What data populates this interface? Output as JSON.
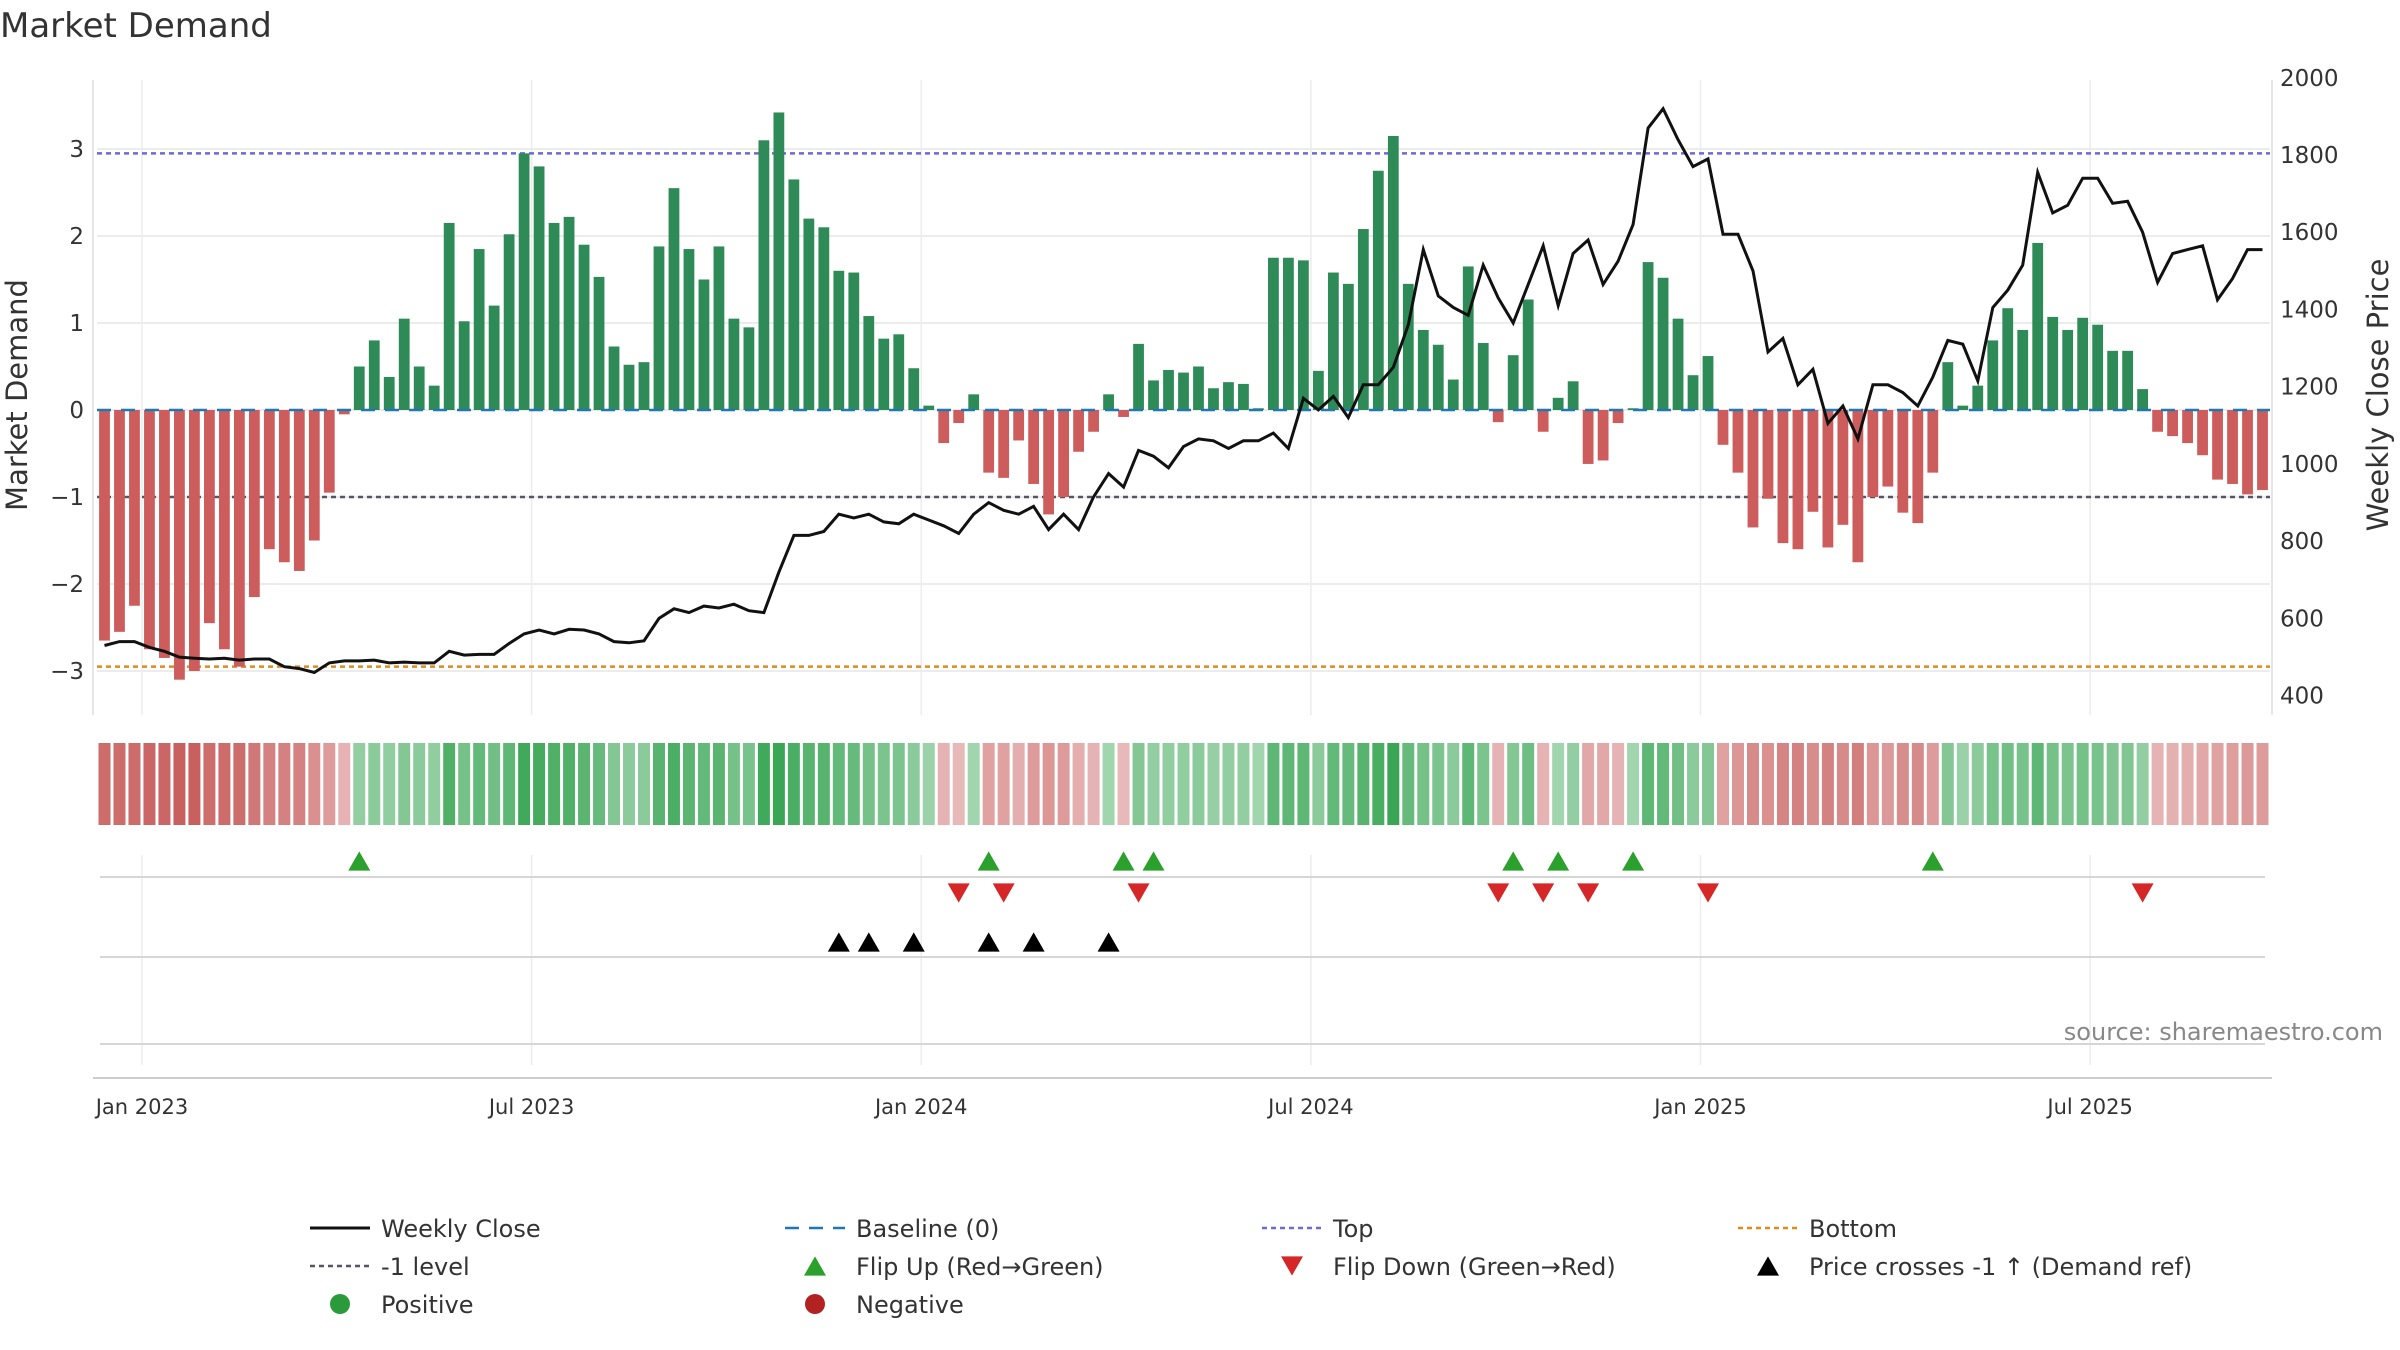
{
  "chart_data": {
    "type": "bar",
    "title": "Market Demand",
    "ylabel": "Market Demand",
    "y2label": "Weekly Close Price",
    "ylim": [
      -3.6,
      3.6
    ],
    "y2lim": [
      385,
      2000
    ],
    "yticks": [
      "3",
      "2",
      "1",
      "0",
      "−1",
      "−2",
      "−3"
    ],
    "y2ticks": [
      "2000",
      "1800",
      "1600",
      "1400",
      "1200",
      "1000",
      "800",
      "600",
      "400"
    ],
    "xticks": [
      "Jan 2023",
      "Jul 2023",
      "Jan 2024",
      "Jul 2024",
      "Jan 2025",
      "Jul 2025"
    ],
    "xtick_weeks": [
      3,
      29,
      55,
      81,
      107,
      133
    ],
    "reference_levels": {
      "top": 2.95,
      "bottom": -2.95,
      "minus_one": -1,
      "baseline": 0
    },
    "series": [
      {
        "name": "Market Demand",
        "values": [
          -2.65,
          -2.55,
          -2.25,
          -2.75,
          -2.85,
          -3.1,
          -3.0,
          -2.45,
          -2.75,
          -2.95,
          -2.15,
          -1.6,
          -1.75,
          -1.85,
          -1.5,
          -0.95,
          -0.05,
          0.5,
          0.8,
          0.38,
          1.05,
          0.5,
          0.28,
          2.15,
          1.02,
          1.85,
          1.2,
          2.02,
          2.95,
          2.8,
          2.15,
          2.22,
          1.9,
          1.53,
          0.73,
          0.52,
          0.55,
          1.88,
          2.55,
          1.85,
          1.5,
          1.88,
          1.05,
          0.95,
          3.1,
          3.42,
          2.65,
          2.2,
          2.1,
          1.6,
          1.58,
          1.08,
          0.82,
          0.87,
          0.48,
          0.05,
          -0.38,
          -0.15,
          0.18,
          -0.72,
          -0.78,
          -0.35,
          -0.85,
          -1.2,
          -1.0,
          -0.48,
          -0.25,
          0.18,
          -0.08,
          0.76,
          0.34,
          0.46,
          0.43,
          0.5,
          0.25,
          0.32,
          0.3,
          0.02,
          1.75,
          1.75,
          1.72,
          0.45,
          1.58,
          1.45,
          2.08,
          2.75,
          3.15,
          1.45,
          0.92,
          0.75,
          0.35,
          1.65,
          0.77,
          -0.14,
          0.63,
          1.27,
          -0.25,
          0.14,
          0.33,
          -0.62,
          -0.58,
          -0.15,
          0.02,
          1.7,
          1.52,
          1.05,
          0.4,
          0.62,
          -0.4,
          -0.72,
          -1.35,
          -1.02,
          -1.53,
          -1.6,
          -1.17,
          -1.58,
          -1.32,
          -1.75,
          -1.0,
          -0.88,
          -1.18,
          -1.3,
          -0.72,
          0.55,
          0.05,
          0.28,
          0.8,
          1.17,
          0.92,
          1.92,
          1.07,
          0.92,
          1.06,
          0.98,
          0.68,
          0.68,
          0.24,
          -0.25,
          -0.3,
          -0.38,
          -0.52,
          -0.8,
          -0.85,
          -0.97,
          -0.92
        ]
      },
      {
        "name": "Weekly Close",
        "values": [
          530,
          540,
          540,
          525,
          515,
          500,
          497,
          495,
          497,
          492,
          495,
          495,
          475,
          470,
          460,
          485,
          490,
          490,
          492,
          485,
          487,
          485,
          485,
          515,
          505,
          507,
          507,
          535,
          560,
          570,
          560,
          572,
          570,
          560,
          540,
          537,
          542,
          600,
          625,
          615,
          632,
          627,
          637,
          620,
          615,
          720,
          815,
          815,
          825,
          870,
          860,
          870,
          850,
          845,
          870,
          855,
          840,
          820,
          870,
          900,
          880,
          870,
          890,
          830,
          870,
          830,
          915,
          975,
          940,
          1035,
          1020,
          990,
          1045,
          1065,
          1060,
          1040,
          1060,
          1060,
          1080,
          1040,
          1170,
          1140,
          1175,
          1120,
          1205,
          1205,
          1250,
          1360,
          1555,
          1435,
          1405,
          1385,
          1515,
          1430,
          1365,
          1465,
          1565,
          1410,
          1545,
          1580,
          1465,
          1525,
          1620,
          1870,
          1920,
          1840,
          1770,
          1790,
          1595,
          1595,
          1500,
          1290,
          1325,
          1205,
          1245,
          1105,
          1150,
          1065,
          1205,
          1205,
          1185,
          1150,
          1225,
          1320,
          1310,
          1215,
          1405,
          1450,
          1515,
          1755,
          1650,
          1670,
          1740,
          1740,
          1675,
          1680,
          1600,
          1470,
          1545,
          1555,
          1565,
          1425,
          1480,
          1555,
          1555
        ]
      }
    ],
    "strip_intensity": [
      0.9,
      0.9,
      0.9,
      0.95,
      0.95,
      1.0,
      1.0,
      0.88,
      0.9,
      0.9,
      0.8,
      0.72,
      0.72,
      0.72,
      0.6,
      0.5,
      0.3,
      0.4,
      0.45,
      0.42,
      0.5,
      0.45,
      0.42,
      0.85,
      0.6,
      0.72,
      0.62,
      0.75,
      0.95,
      0.92,
      0.85,
      0.85,
      0.78,
      0.7,
      0.5,
      0.45,
      0.45,
      0.8,
      0.88,
      0.78,
      0.72,
      0.78,
      0.6,
      0.58,
      0.95,
      1.0,
      0.88,
      0.8,
      0.8,
      0.72,
      0.7,
      0.6,
      0.55,
      0.55,
      0.45,
      0.35,
      0.3,
      0.25,
      0.3,
      0.45,
      0.45,
      0.35,
      0.5,
      0.55,
      0.5,
      0.35,
      0.3,
      0.3,
      0.25,
      0.5,
      0.4,
      0.42,
      0.42,
      0.45,
      0.38,
      0.4,
      0.4,
      0.3,
      0.75,
      0.75,
      0.75,
      0.45,
      0.72,
      0.7,
      0.8,
      0.9,
      1.0,
      0.7,
      0.6,
      0.55,
      0.45,
      0.75,
      0.55,
      0.3,
      0.5,
      0.65,
      0.3,
      0.3,
      0.4,
      0.4,
      0.4,
      0.3,
      0.3,
      0.75,
      0.72,
      0.62,
      0.45,
      0.5,
      0.45,
      0.55,
      0.65,
      0.6,
      0.7,
      0.72,
      0.62,
      0.72,
      0.65,
      0.75,
      0.55,
      0.52,
      0.62,
      0.65,
      0.5,
      0.5,
      0.35,
      0.45,
      0.58,
      0.62,
      0.58,
      0.75,
      0.6,
      0.55,
      0.6,
      0.58,
      0.52,
      0.52,
      0.4,
      0.3,
      0.32,
      0.35,
      0.4,
      0.45,
      0.48,
      0.52,
      0.5
    ],
    "flip_up_weeks": [
      17,
      59,
      68,
      70,
      94,
      97,
      102,
      122
    ],
    "flip_down_weeks": [
      57,
      60,
      69,
      93,
      96,
      99,
      107,
      136
    ],
    "price_cross_weeks": [
      49,
      51,
      54,
      59,
      62,
      67
    ],
    "legend": [
      {
        "label": "Weekly Close",
        "marker": "line",
        "color": "#111111"
      },
      {
        "label": "Baseline (0)",
        "marker": "dash",
        "color": "#1f77b4"
      },
      {
        "label": "Top",
        "marker": "dot",
        "color": "#6a6ad8"
      },
      {
        "label": "Bottom",
        "marker": "dot",
        "color": "#e08a1e"
      },
      {
        "label": "-1 level",
        "marker": "dot",
        "color": "#555566"
      },
      {
        "label": "Flip Up (Red→Green)",
        "marker": "tri-up",
        "color": "#2ca02c"
      },
      {
        "label": "Flip Down (Green→Red)",
        "marker": "tri-down",
        "color": "#d62728"
      },
      {
        "label": "Price crosses -1 ↑ (Demand ref)",
        "marker": "tri-up",
        "color": "#000000"
      },
      {
        "label": "Positive",
        "marker": "circle",
        "color": "#2a9a3a"
      },
      {
        "label": "Negative",
        "marker": "circle",
        "color": "#b22222"
      }
    ],
    "source": "source: sharemaestro.com"
  },
  "colors": {
    "positive_bar": "#2e8b57",
    "negative_bar": "#cd5c5c",
    "strip_green": "#3aa655",
    "strip_red": "#c8605f"
  }
}
